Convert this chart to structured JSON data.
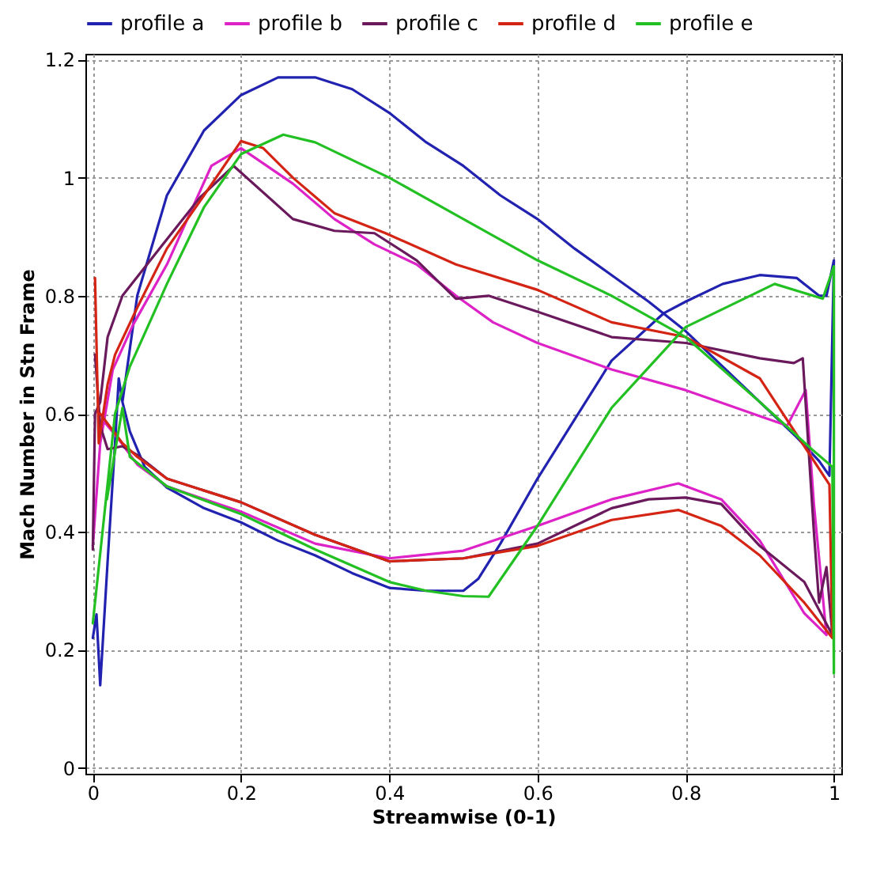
{
  "chart_data": {
    "type": "line",
    "xlabel": "Streamwise (0-1)",
    "ylabel": "Mach Number in Stn Frame",
    "xlim": [
      -0.01,
      1.01
    ],
    "ylim": [
      -0.01,
      1.21
    ],
    "xticks": [
      0,
      0.2,
      0.4,
      0.6,
      0.8,
      1
    ],
    "yticks": [
      0,
      0.2,
      0.4,
      0.6,
      0.8,
      1,
      1.2
    ],
    "grid": true,
    "legend": "top",
    "line_style": "solid",
    "series": [
      {
        "name": "profile a",
        "color": "#2222b0",
        "x": [
          0,
          0.005,
          0.01,
          0.02,
          0.03,
          0.035,
          0.04,
          0.06,
          0.1,
          0.15,
          0.2,
          0.25,
          0.3,
          0.35,
          0.4,
          0.45,
          0.5,
          0.55,
          0.6,
          0.65,
          0.7,
          0.75,
          0.8,
          0.85,
          0.9,
          0.95,
          0.98,
          0.994,
          1.0,
          0.99,
          0.98,
          0.95,
          0.9,
          0.85,
          0.8,
          0.77,
          0.7,
          0.65,
          0.6,
          0.55,
          0.52,
          0.5,
          0.45,
          0.4,
          0.35,
          0.3,
          0.25,
          0.2,
          0.15,
          0.1,
          0.07,
          0.05,
          0.04
        ],
        "values": [
          0.22,
          0.26,
          0.14,
          0.35,
          0.55,
          0.66,
          0.62,
          0.8,
          0.97,
          1.08,
          1.14,
          1.17,
          1.17,
          1.15,
          1.11,
          1.06,
          1.02,
          0.97,
          0.93,
          0.88,
          0.835,
          0.79,
          0.74,
          0.68,
          0.62,
          0.56,
          0.52,
          0.495,
          0.86,
          0.8,
          0.8,
          0.83,
          0.835,
          0.82,
          0.79,
          0.77,
          0.69,
          0.59,
          0.49,
          0.38,
          0.32,
          0.3,
          0.3,
          0.305,
          0.33,
          0.36,
          0.385,
          0.416,
          0.44,
          0.475,
          0.51,
          0.57,
          0.62
        ]
      },
      {
        "name": "profile b",
        "color": "#dd22c8",
        "x": [
          0,
          0.01,
          0.027,
          0.054,
          0.1,
          0.16,
          0.2,
          0.27,
          0.326,
          0.38,
          0.437,
          0.49,
          0.54,
          0.6,
          0.7,
          0.8,
          0.9,
          0.937,
          0.962,
          0.973,
          0.99,
          0.96,
          0.9,
          0.848,
          0.79,
          0.7,
          0.6,
          0.5,
          0.4,
          0.3,
          0.2,
          0.1,
          0.06,
          0.033,
          0.013
        ],
        "values": [
          0.376,
          0.55,
          0.675,
          0.75,
          0.853,
          1.02,
          1.05,
          0.99,
          0.93,
          0.887,
          0.853,
          0.8,
          0.755,
          0.72,
          0.675,
          0.64,
          0.596,
          0.58,
          0.64,
          0.447,
          0.225,
          0.262,
          0.385,
          0.455,
          0.482,
          0.455,
          0.41,
          0.368,
          0.355,
          0.38,
          0.434,
          0.477,
          0.514,
          0.56,
          0.59
        ]
      },
      {
        "name": "profile c",
        "color": "#6a1a5c",
        "x": [
          0,
          0.003,
          0.01,
          0.02,
          0.04,
          0.09,
          0.145,
          0.19,
          0.27,
          0.326,
          0.38,
          0.437,
          0.49,
          0.534,
          0.6,
          0.7,
          0.8,
          0.9,
          0.946,
          0.958,
          0.973,
          0.98,
          0.99,
          0.998,
          0.96,
          0.9,
          0.848,
          0.8,
          0.75,
          0.7,
          0.6,
          0.5,
          0.4,
          0.3,
          0.2,
          0.1,
          0.06,
          0.04,
          0.02,
          0.01,
          0.003
        ],
        "values": [
          0.37,
          0.6,
          0.62,
          0.73,
          0.8,
          0.88,
          0.967,
          1.02,
          0.93,
          0.91,
          0.906,
          0.86,
          0.795,
          0.8,
          0.773,
          0.73,
          0.72,
          0.694,
          0.686,
          0.694,
          0.4,
          0.28,
          0.34,
          0.225,
          0.315,
          0.376,
          0.447,
          0.458,
          0.455,
          0.44,
          0.38,
          0.355,
          0.35,
          0.395,
          0.45,
          0.49,
          0.53,
          0.545,
          0.54,
          0.58,
          0.7
        ]
      },
      {
        "name": "profile d",
        "color": "#d42414",
        "x": [
          0.003,
          0.008,
          0.02,
          0.03,
          0.06,
          0.1,
          0.15,
          0.2,
          0.23,
          0.27,
          0.326,
          0.395,
          0.49,
          0.6,
          0.7,
          0.8,
          0.9,
          0.994,
          0.998,
          0.96,
          0.9,
          0.848,
          0.79,
          0.7,
          0.6,
          0.5,
          0.4,
          0.3,
          0.2,
          0.1,
          0.06,
          0.04,
          0.01
        ],
        "values": [
          0.83,
          0.55,
          0.65,
          0.7,
          0.78,
          0.88,
          0.97,
          1.062,
          1.05,
          1.0,
          0.94,
          0.906,
          0.853,
          0.81,
          0.755,
          0.73,
          0.66,
          0.48,
          0.22,
          0.28,
          0.36,
          0.41,
          0.437,
          0.42,
          0.376,
          0.355,
          0.35,
          0.395,
          0.45,
          0.49,
          0.527,
          0.55,
          0.6
        ]
      },
      {
        "name": "profile e",
        "color": "#22c022",
        "x": [
          0,
          0.03,
          0.05,
          0.075,
          0.1,
          0.15,
          0.2,
          0.257,
          0.3,
          0.4,
          0.5,
          0.6,
          0.7,
          0.8,
          0.9,
          0.97,
          0.998,
          1.0,
          1.0,
          0.985,
          0.92,
          0.8,
          0.7,
          0.6,
          0.534,
          0.5,
          0.45,
          0.4,
          0.3,
          0.2,
          0.1,
          0.05,
          0.04,
          0.019
        ],
        "values": [
          0.245,
          0.6,
          0.68,
          0.75,
          0.82,
          0.95,
          1.04,
          1.073,
          1.06,
          1.0,
          0.93,
          0.86,
          0.8,
          0.73,
          0.62,
          0.54,
          0.51,
          0.16,
          0.85,
          0.795,
          0.82,
          0.747,
          0.61,
          0.41,
          0.29,
          0.291,
          0.3,
          0.315,
          0.37,
          0.43,
          0.477,
          0.527,
          0.61,
          0.455
        ]
      }
    ]
  }
}
